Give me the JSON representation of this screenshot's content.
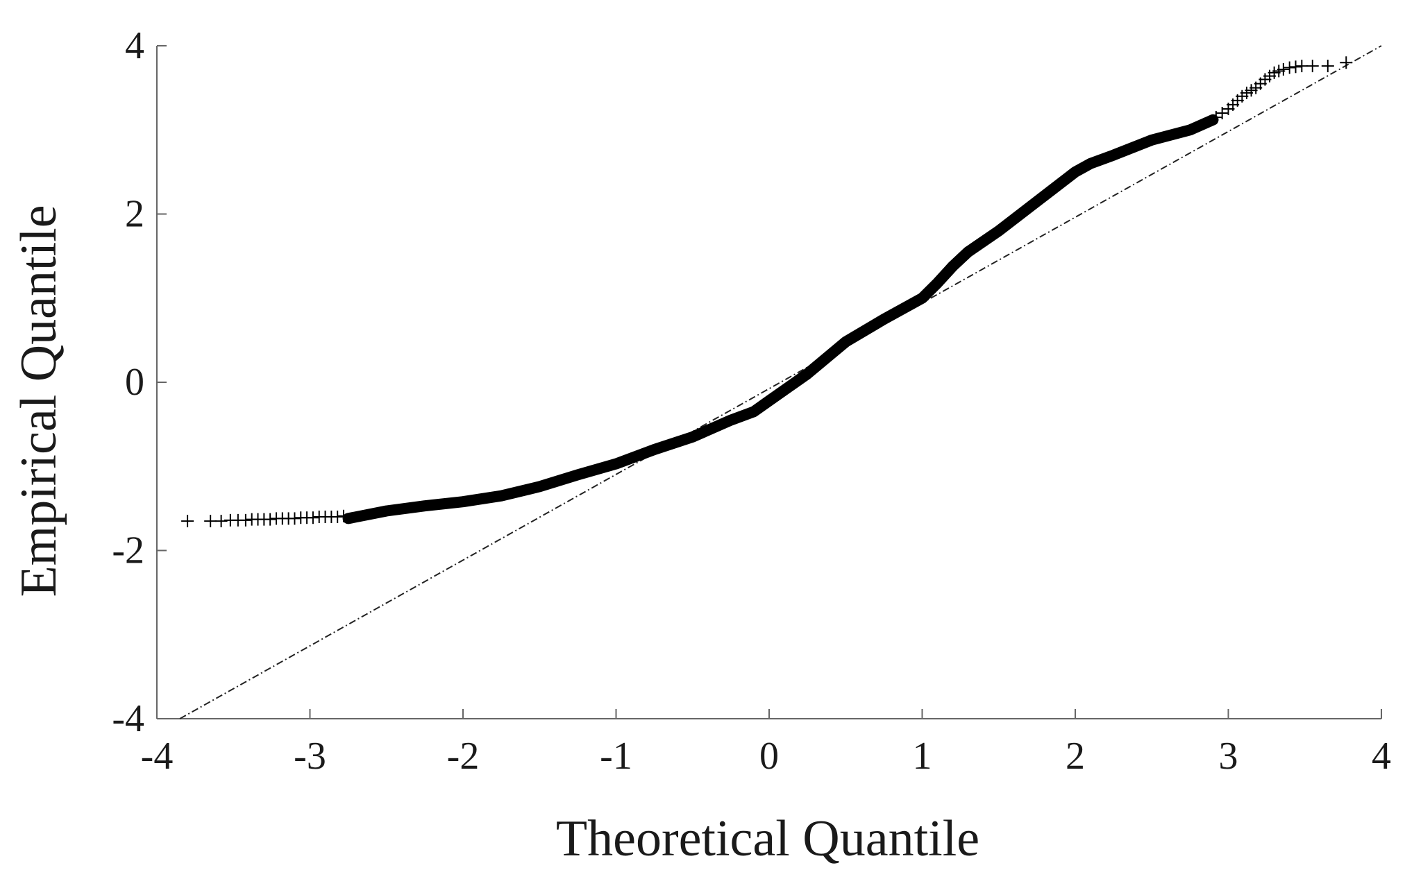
{
  "chart_data": {
    "type": "scatter",
    "title": "",
    "xlabel": "Theoretical Quantile",
    "ylabel": "Empirical Quantile",
    "xlim": [
      -4,
      4
    ],
    "ylim": [
      -4,
      4
    ],
    "xticks": [
      -4,
      -3,
      -2,
      -1,
      0,
      1,
      2,
      3,
      4
    ],
    "yticks": [
      -4,
      -2,
      0,
      2,
      4
    ],
    "grid": false,
    "colors": {
      "points": "#000000",
      "axis": "#666666",
      "reference_line": "#222222"
    },
    "reference_line": {
      "x": [
        -3.85,
        4.0
      ],
      "y": [
        -4.0,
        4.0
      ],
      "style": "dash-dot"
    },
    "dense_curve": {
      "x": [
        -2.75,
        -2.5,
        -2.25,
        -2.0,
        -1.75,
        -1.5,
        -1.25,
        -1.0,
        -0.75,
        -0.5,
        -0.25,
        -0.1,
        0.0,
        0.25,
        0.5,
        0.75,
        1.0,
        1.1,
        1.2,
        1.3,
        1.5,
        1.75,
        2.0,
        2.1,
        2.25,
        2.5,
        2.75,
        2.9
      ],
      "y": [
        -1.62,
        -1.53,
        -1.47,
        -1.42,
        -1.35,
        -1.24,
        -1.1,
        -0.97,
        -0.8,
        -0.65,
        -0.45,
        -0.35,
        -0.22,
        0.1,
        0.48,
        0.75,
        1.0,
        1.18,
        1.38,
        1.55,
        1.8,
        2.15,
        2.5,
        2.6,
        2.7,
        2.88,
        3.0,
        3.12
      ]
    },
    "tail_points": {
      "x": [
        -3.8,
        -3.65,
        -3.58,
        -3.52,
        -3.47,
        -3.42,
        -3.38,
        -3.34,
        -3.3,
        -3.26,
        -3.22,
        -3.18,
        -3.14,
        -3.1,
        -3.06,
        -3.02,
        -2.98,
        -2.94,
        -2.9,
        -2.86,
        -2.82,
        -2.78,
        2.92,
        2.96,
        3.0,
        3.03,
        3.06,
        3.09,
        3.12,
        3.15,
        3.18,
        3.21,
        3.24,
        3.27,
        3.3,
        3.33,
        3.36,
        3.4,
        3.44,
        3.48,
        3.55,
        3.65,
        3.77
      ],
      "y": [
        -1.65,
        -1.65,
        -1.65,
        -1.64,
        -1.64,
        -1.64,
        -1.63,
        -1.63,
        -1.63,
        -1.63,
        -1.62,
        -1.62,
        -1.62,
        -1.62,
        -1.61,
        -1.61,
        -1.61,
        -1.6,
        -1.6,
        -1.6,
        -1.6,
        -1.59,
        3.15,
        3.2,
        3.25,
        3.3,
        3.35,
        3.4,
        3.44,
        3.47,
        3.5,
        3.55,
        3.6,
        3.64,
        3.68,
        3.7,
        3.72,
        3.74,
        3.75,
        3.76,
        3.76,
        3.76,
        3.8
      ]
    }
  }
}
